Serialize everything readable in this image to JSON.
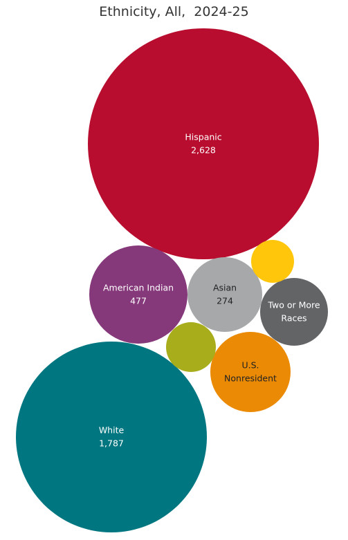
{
  "chart_data": {
    "type": "bubble",
    "title": "Ethnicity, All,  2024-25",
    "items": [
      {
        "label": "Hispanic",
        "value": 2628,
        "value_label": "2,628",
        "color": "#B80D2E",
        "text_color": "#ffffff"
      },
      {
        "label": "White",
        "value": 1787,
        "value_label": "1,787",
        "color": "#007780",
        "text_color": "#ffffff"
      },
      {
        "label": "American Indian",
        "value": 477,
        "value_label": "477",
        "color": "#86397A",
        "text_color": "#ffffff"
      },
      {
        "label": "Asian",
        "value": 274,
        "value_label": "274",
        "color": "#A7A8AA",
        "text_color": "#222222"
      },
      {
        "label": "U.S. Nonresident",
        "value_label": "",
        "color": "#EA8A05",
        "text_color": "#222222"
      },
      {
        "label": "Two or More Races",
        "value_label": "",
        "color": "#636466",
        "text_color": "#ffffff"
      },
      {
        "label": "",
        "value_label": "",
        "color": "#A8AD1B",
        "text_color": "#ffffff"
      },
      {
        "label": "",
        "value_label": "",
        "color": "#FFC60B",
        "text_color": "#ffffff"
      }
    ]
  }
}
